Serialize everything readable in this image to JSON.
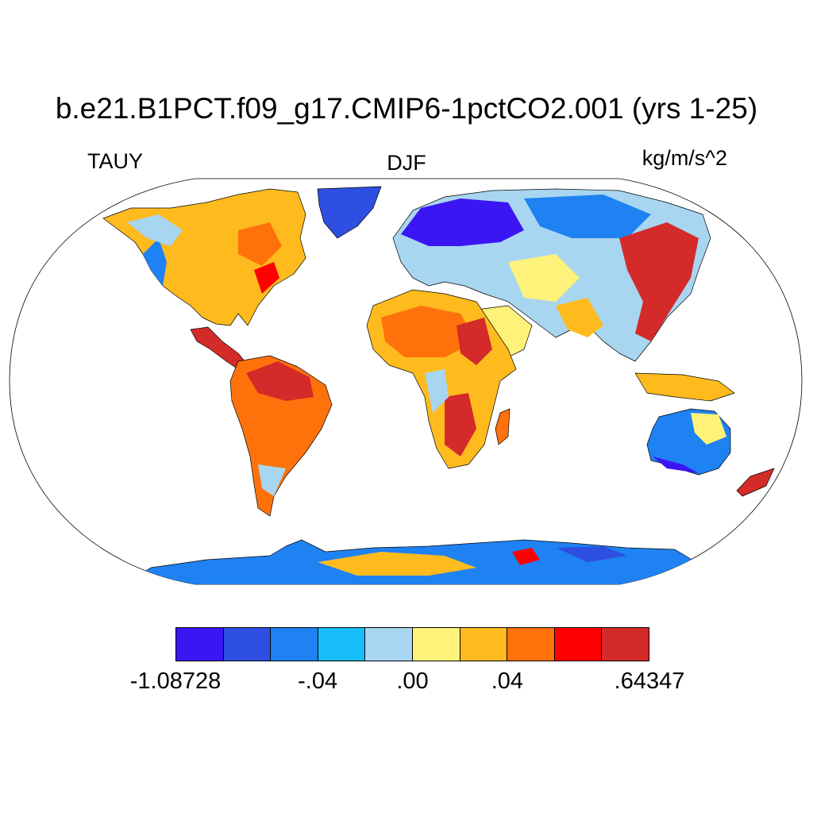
{
  "header": {
    "title": "b.e21.B1PCT.f09_g17.CMIP6-1pctCO2.001 (yrs 1-25)",
    "variable": "TAUY",
    "season": "DJF",
    "units": "kg/m/s^2"
  },
  "colorbar": {
    "colors": [
      "#3b16f2",
      "#2f4fe3",
      "#1f82f2",
      "#19bdfa",
      "#a8d6f0",
      "#fff27a",
      "#ffbb1e",
      "#ff720b",
      "#ff0000",
      "#d42a2a"
    ],
    "tick_labels": [
      "-1.08728",
      "-.04",
      ".00",
      ".04",
      ".64347"
    ],
    "tick_positions_boxes": [
      0,
      3,
      5,
      7,
      10
    ]
  },
  "map": {
    "projection": "Robinson",
    "ocean_color": "#ffffff",
    "outline_color": "#000000"
  }
}
